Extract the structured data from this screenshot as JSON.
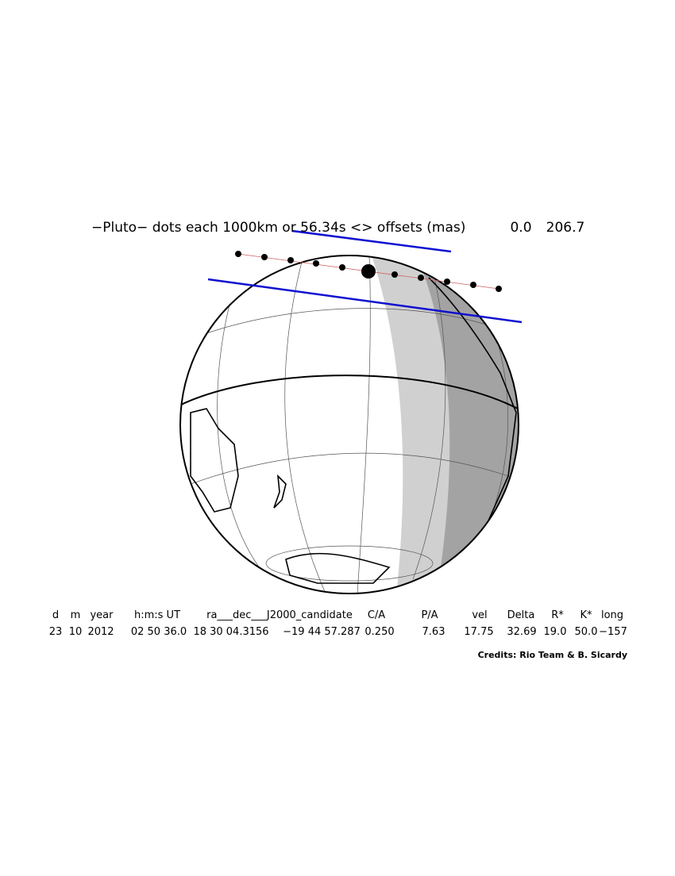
{
  "header": {
    "title": "−Pluto− dots each 1000km or 56.34s <> offsets (mas)",
    "offsets": [
      "0.0",
      "206.7"
    ]
  },
  "table": {
    "columns": [
      "d",
      "m",
      "year",
      "h:m:s UT",
      "ra___dec___J2000_candidate",
      "C/A",
      "P/A",
      "vel",
      "Delta",
      "R*",
      "K*",
      "long"
    ],
    "values": [
      "23",
      "10",
      "2012",
      "02 50 36.0",
      "18 30 04.3156",
      "−19 44 57.287",
      "0.250",
      "7.63",
      "17.75",
      "32.69",
      "19.0",
      "50.0",
      "−157"
    ]
  },
  "credits": "Credits: Rio Team & B. Sicardy"
}
